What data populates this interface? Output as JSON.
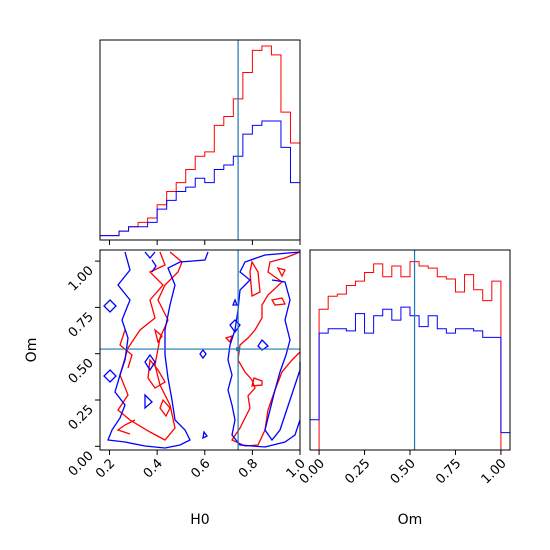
{
  "chart_data": {
    "type": "corner",
    "parameters": [
      "H0",
      "Om"
    ],
    "truth": {
      "H0": 0.74,
      "Om": 0.525
    },
    "colors": {
      "series_red": "#ff0000",
      "series_blue": "#0000ff",
      "truth": "#1f77b4"
    },
    "series": [
      {
        "color": "red"
      },
      {
        "color": "blue"
      }
    ],
    "panels": [
      {
        "id": "hist-H0",
        "type": "histogram",
        "x_range": [
          0.16,
          1.0
        ],
        "y_ticks_shown": false,
        "x_tick_labels_shown": false,
        "bins": [
          0.16,
          0.2,
          0.24,
          0.28,
          0.32,
          0.36,
          0.4,
          0.44,
          0.48,
          0.52,
          0.56,
          0.6,
          0.64,
          0.68,
          0.72,
          0.76,
          0.8,
          0.84,
          0.88,
          0.92,
          0.96,
          1.0
        ],
        "red": [
          1,
          1,
          2,
          3,
          4,
          5,
          8,
          11,
          13,
          16,
          19,
          20,
          26,
          28,
          32,
          38,
          43,
          44,
          42,
          29,
          22
        ],
        "blue": [
          1,
          1,
          2,
          3,
          3,
          4,
          7,
          9,
          11,
          12,
          14,
          13,
          16,
          17,
          19,
          24,
          26,
          27,
          27,
          21,
          13
        ]
      },
      {
        "id": "contour-Om-vs-H0",
        "type": "2d-contour",
        "x_range": [
          0.16,
          1.0
        ],
        "y_range": [
          -0.02,
          1.06
        ],
        "x_ticks": [
          0.2,
          0.4,
          0.6,
          0.8,
          1.0
        ],
        "x_tick_labels": [
          "0.2",
          "0.4",
          "0.6",
          "0.8",
          "1.0"
        ],
        "y_ticks": [
          0.0,
          0.25,
          0.5,
          0.75,
          1.0
        ],
        "y_tick_labels": [
          "0.00",
          "0.25",
          "0.50",
          "0.75",
          "1.00"
        ],
        "xlabel": "H0",
        "ylabel": "Om"
      },
      {
        "id": "hist-Om",
        "type": "histogram",
        "x_range": [
          -0.05,
          1.05
        ],
        "x_ticks": [
          0.0,
          0.25,
          0.5,
          0.75,
          1.0
        ],
        "x_tick_labels": [
          "0.00",
          "0.25",
          "0.50",
          "0.75",
          "1.00"
        ],
        "xlabel": "Om",
        "bins": [
          -0.05,
          0.0,
          0.05,
          0.1,
          0.15,
          0.2,
          0.25,
          0.3,
          0.35,
          0.4,
          0.45,
          0.5,
          0.55,
          0.6,
          0.65,
          0.7,
          0.75,
          0.8,
          0.85,
          0.9,
          0.95,
          1.0,
          1.05
        ],
        "red": [
          0,
          65,
          71,
          72,
          76,
          78,
          82,
          86,
          80,
          85,
          80,
          87,
          85,
          84,
          80,
          79,
          73,
          81,
          74,
          69,
          78,
          0
        ],
        "blue": [
          14,
          54,
          56,
          56,
          55,
          63,
          54,
          62,
          65,
          60,
          66,
          62,
          57,
          62,
          56,
          54,
          56,
          56,
          55,
          52,
          52,
          8
        ]
      }
    ]
  }
}
